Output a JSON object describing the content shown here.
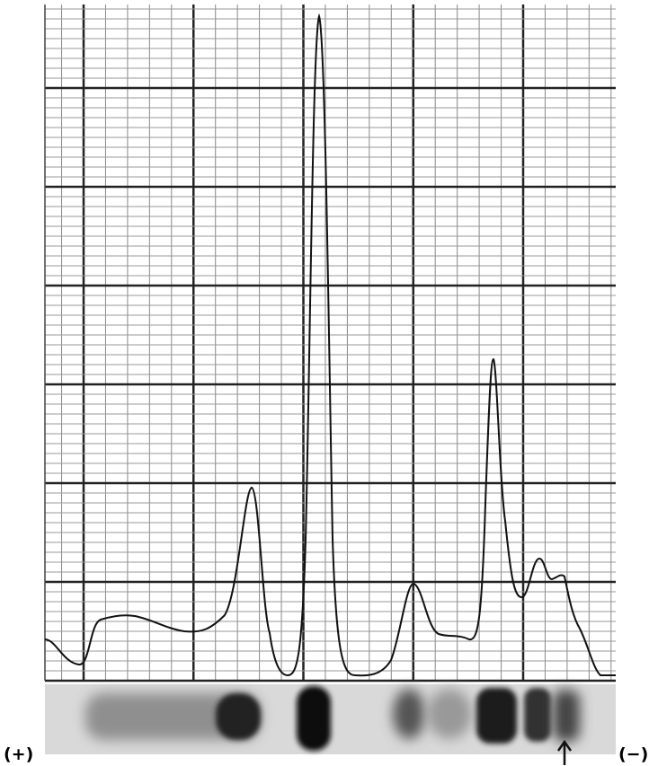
{
  "labels": {
    "anode": "(+)",
    "cathode": "(−)"
  }
}
